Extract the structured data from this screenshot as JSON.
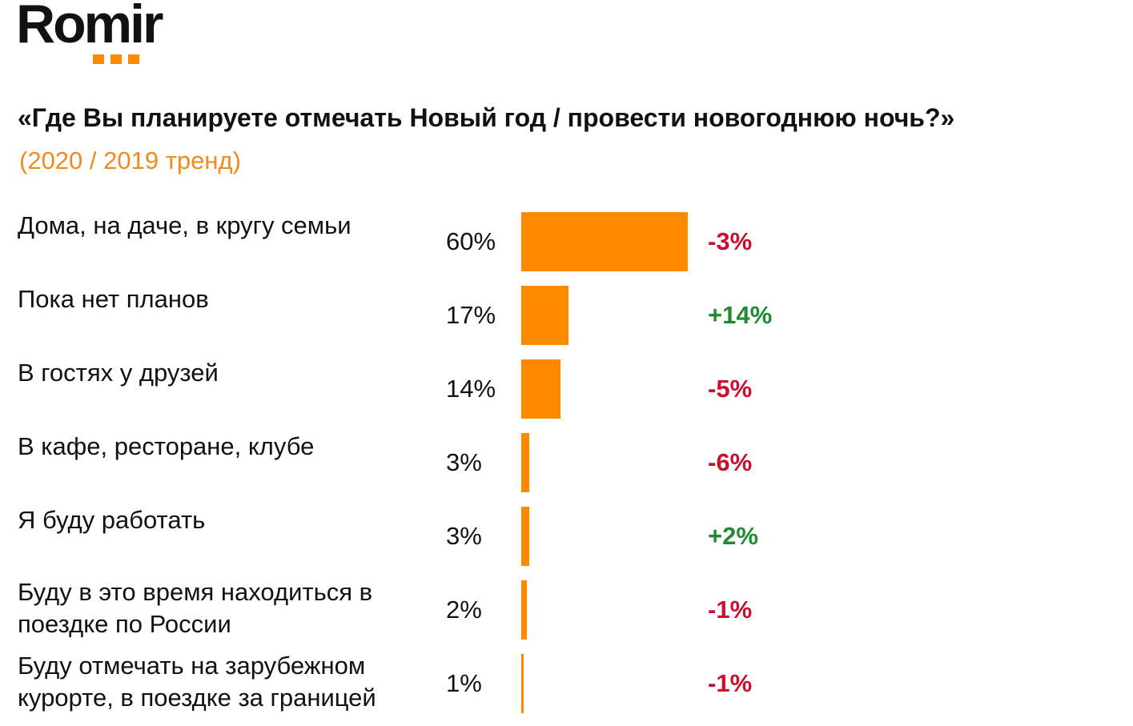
{
  "logo": {
    "text": "Romir",
    "accent_color": "#ff8a00"
  },
  "chart_data": {
    "type": "bar",
    "orientation": "horizontal",
    "title": "«Где Вы планируете отмечать Новый год / провести новогоднюю ночь?»",
    "subtitle": "(2020 / 2019 тренд)",
    "categories": [
      "Дома, на даче, в кругу семьи",
      "Пока нет планов",
      "В гостях у друзей",
      "В кафе, ресторане, клубе",
      "Я буду работать",
      "Буду в это время находиться в поездке по России",
      "Буду отмечать на зарубежном курорте, в поездке за границей"
    ],
    "values": [
      60,
      17,
      14,
      3,
      3,
      2,
      1
    ],
    "value_labels": [
      "60%",
      "17%",
      "14%",
      "3%",
      "3%",
      "2%",
      "1%"
    ],
    "deltas": [
      "-3%",
      "+14%",
      "-5%",
      "-6%",
      "+2%",
      "-1%",
      "-1%"
    ],
    "unit": "%",
    "xlim": [
      0,
      60
    ],
    "grid": false,
    "legend": "none",
    "colors": {
      "bar": "#ff8a00",
      "negative": "#c8102e",
      "positive": "#1e8c2e",
      "subtitle": "#f08a1c"
    }
  }
}
